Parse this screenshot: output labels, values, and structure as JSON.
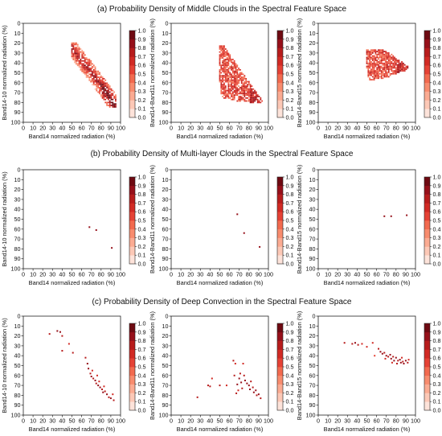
{
  "figure": {
    "ticks": [
      0,
      10,
      20,
      30,
      40,
      50,
      60,
      70,
      80,
      90,
      100
    ],
    "colorbar_ticks": [
      "0.0",
      "0.1",
      "0.2",
      "0.3",
      "0.4",
      "0.5",
      "0.6",
      "0.7",
      "0.8",
      "0.9",
      "1.0"
    ],
    "colorbar_colors": [
      "#ffffff",
      "#fde3da",
      "#fcc8b6",
      "#fbab92",
      "#f88c6e",
      "#f26a4f",
      "#e54235",
      "#d12a24",
      "#b71c1c",
      "#96101a",
      "#6e0a12"
    ],
    "sections": [
      {
        "title": "(a)  Probability Density of Middle Clouds in the Spectral Feature Space",
        "panels": [
          {
            "xlabel": "Band14 normalized radiation (%)",
            "ylabel": "Band14-10 normalized radiation (%)"
          },
          {
            "xlabel": "Band14 normalized radiation (%)",
            "ylabel": "Band14-Band11 normalized radiation (%)"
          },
          {
            "xlabel": "Band14 normalized radiation (%)",
            "ylabel": "Band14-Band15 normalized radiation (%)"
          }
        ]
      },
      {
        "title": "(b)  Probability Density of Multi-layer Clouds in the Spectral Feature Space",
        "panels": [
          {
            "xlabel": "Band14 normalized radiation (%)",
            "ylabel": "Band14-10 normalized radiation (%)"
          },
          {
            "xlabel": "Band14 normalized radiation (%)",
            "ylabel": "Band14-Band11 normalized radiation (%)"
          },
          {
            "xlabel": "Band14 normalized radiation (%)",
            "ylabel": "Band14-Band15 normalized radiation (%)"
          }
        ]
      },
      {
        "title": "(c)  Probability Density of Deep Convection in the Spectral Feature Space",
        "panels": [
          {
            "xlabel": "Band14 normalized radiation (%)",
            "ylabel": "Band14-10 normalized radiation (%)"
          },
          {
            "xlabel": "Band14 normalized radiation (%)",
            "ylabel": "Band14-Band11 normalized radiation (%)"
          },
          {
            "xlabel": "Band14 normalized radiation (%)",
            "ylabel": "Band14-Band15 normalized radiation (%)"
          }
        ]
      }
    ]
  },
  "chart_data": [
    {
      "type": "heatmap",
      "title": "(a)  Probability Density of Middle Clouds in the Spectral Feature Space",
      "xlabel": "Band14 normalized radiation (%)",
      "ylabel": "Band14-10 normalized radiation (%)",
      "xlim": [
        0,
        100
      ],
      "ylim": [
        0,
        100
      ],
      "y_inverted": true,
      "colorbar_range": [
        0.0,
        1.0
      ],
      "density_region": {
        "shape": "diagonal-band",
        "x_range": [
          50,
          95
        ],
        "y_range": [
          20,
          85
        ],
        "centerline": [
          [
            50,
            25
          ],
          [
            60,
            37
          ],
          [
            70,
            50
          ],
          [
            80,
            63
          ],
          [
            90,
            76
          ],
          [
            94,
            83
          ]
        ],
        "half_width": 7
      }
    },
    {
      "type": "heatmap",
      "title": "(a)  Probability Density of Middle Clouds in the Spectral Feature Space",
      "xlabel": "Band14 normalized radiation (%)",
      "ylabel": "Band14-Band11 normalized radiation (%)",
      "xlim": [
        0,
        100
      ],
      "ylim": [
        0,
        100
      ],
      "y_inverted": true,
      "colorbar_range": [
        0.0,
        1.0
      ],
      "density_region": {
        "shape": "polygon",
        "x_range": [
          50,
          95
        ],
        "y_range": [
          20,
          85
        ],
        "polygon": [
          [
            50,
            22
          ],
          [
            54,
            22
          ],
          [
            72,
            48
          ],
          [
            94,
            78
          ],
          [
            92,
            81
          ],
          [
            70,
            79
          ],
          [
            52,
            75
          ],
          [
            50,
            60
          ]
        ]
      }
    },
    {
      "type": "heatmap",
      "title": "(a)  Probability Density of Middle Clouds in the Spectral Feature Space",
      "xlabel": "Band14 normalized radiation (%)",
      "ylabel": "Band14-Band15 normalized radiation (%)",
      "xlim": [
        0,
        100
      ],
      "ylim": [
        0,
        100
      ],
      "y_inverted": true,
      "colorbar_range": [
        0.0,
        1.0
      ],
      "density_region": {
        "shape": "wedge",
        "x_range": [
          50,
          94
        ],
        "y_range": [
          24,
          58
        ],
        "polygon": [
          [
            50,
            26
          ],
          [
            68,
            26
          ],
          [
            93,
            44
          ],
          [
            93,
            47
          ],
          [
            70,
            55
          ],
          [
            52,
            58
          ],
          [
            50,
            45
          ]
        ]
      }
    },
    {
      "type": "scatter",
      "title": "(b)  Probability Density of Multi-layer Clouds in the Spectral Feature Space",
      "xlabel": "Band14 normalized radiation (%)",
      "ylabel": "Band14-10 normalized radiation (%)",
      "xlim": [
        0,
        100
      ],
      "ylim": [
        0,
        100
      ],
      "y_inverted": true,
      "colorbar_range": [
        0.0,
        1.0
      ],
      "points": [
        [
          68,
          58,
          0.9
        ],
        [
          75,
          61,
          0.9
        ],
        [
          91,
          79,
          0.9
        ]
      ]
    },
    {
      "type": "scatter",
      "title": "(b)  Probability Density of Multi-layer Clouds in the Spectral Feature Space",
      "xlabel": "Band14 normalized radiation (%)",
      "ylabel": "Band14-Band11 normalized radiation (%)",
      "xlim": [
        0,
        100
      ],
      "ylim": [
        0,
        100
      ],
      "y_inverted": true,
      "colorbar_range": [
        0.0,
        1.0
      ],
      "points": [
        [
          68,
          45,
          0.9
        ],
        [
          75,
          64,
          0.9
        ],
        [
          91,
          78,
          0.9
        ]
      ]
    },
    {
      "type": "scatter",
      "title": "(b)  Probability Density of Multi-layer Clouds in the Spectral Feature Space",
      "xlabel": "Band14 normalized radiation (%)",
      "ylabel": "Band14-Band15 normalized radiation (%)",
      "xlim": [
        0,
        100
      ],
      "ylim": [
        0,
        100
      ],
      "y_inverted": true,
      "colorbar_range": [
        0.0,
        1.0
      ],
      "points": [
        [
          68,
          47,
          0.9
        ],
        [
          75,
          47,
          0.9
        ],
        [
          91,
          46,
          0.9
        ]
      ]
    },
    {
      "type": "scatter",
      "title": "(c)  Probability Density of Deep Convection in the Spectral Feature Space",
      "xlabel": "Band14 normalized radiation (%)",
      "ylabel": "Band14-10 normalized radiation (%)",
      "xlim": [
        0,
        100
      ],
      "ylim": [
        0,
        100
      ],
      "y_inverted": true,
      "colorbar_range": [
        0.0,
        1.0
      ],
      "points": [
        [
          27,
          18,
          0.8
        ],
        [
          35,
          15,
          0.9
        ],
        [
          38,
          16,
          0.9
        ],
        [
          40,
          20,
          0.8
        ],
        [
          40,
          35,
          0.8
        ],
        [
          47,
          28,
          0.7
        ],
        [
          51,
          37,
          0.8
        ],
        [
          64,
          42,
          0.8
        ],
        [
          66,
          48,
          0.9
        ],
        [
          67,
          53,
          0.9
        ],
        [
          69,
          58,
          0.8
        ],
        [
          70,
          61,
          0.9
        ],
        [
          72,
          63,
          0.8
        ],
        [
          74,
          65,
          0.9
        ],
        [
          75,
          68,
          0.8
        ],
        [
          77,
          70,
          0.9
        ],
        [
          78,
          66,
          0.7
        ],
        [
          79,
          72,
          0.9
        ],
        [
          81,
          74,
          0.8
        ],
        [
          82,
          77,
          0.9
        ],
        [
          84,
          76,
          0.8
        ],
        [
          86,
          79,
          0.9
        ],
        [
          88,
          82,
          0.8
        ],
        [
          90,
          83,
          0.9
        ],
        [
          92,
          79,
          0.7
        ],
        [
          93,
          85,
          0.8
        ],
        [
          76,
          60,
          0.7
        ],
        [
          83,
          71,
          0.7
        ],
        [
          71,
          55,
          0.7
        ]
      ]
    },
    {
      "type": "scatter",
      "title": "(c)  Probability Density of Deep Convection in the Spectral Feature Space",
      "xlabel": "Band14 normalized radiation (%)",
      "ylabel": "Band14-Band11 normalized radiation (%)",
      "xlim": [
        0,
        100
      ],
      "ylim": [
        0,
        100
      ],
      "y_inverted": true,
      "colorbar_range": [
        0.0,
        1.0
      ],
      "points": [
        [
          27,
          82,
          0.8
        ],
        [
          38,
          70,
          0.8
        ],
        [
          40,
          71,
          0.8
        ],
        [
          42,
          63,
          0.7
        ],
        [
          50,
          70,
          0.8
        ],
        [
          57,
          70,
          0.7
        ],
        [
          65,
          60,
          0.8
        ],
        [
          66,
          48,
          0.7
        ],
        [
          67,
          78,
          0.8
        ],
        [
          68,
          69,
          0.9
        ],
        [
          70,
          63,
          0.9
        ],
        [
          71,
          58,
          0.8
        ],
        [
          72,
          67,
          0.9
        ],
        [
          74,
          48,
          0.7
        ],
        [
          75,
          60,
          0.8
        ],
        [
          76,
          65,
          0.9
        ],
        [
          78,
          68,
          0.9
        ],
        [
          80,
          70,
          0.9
        ],
        [
          81,
          74,
          0.9
        ],
        [
          82,
          66,
          0.8
        ],
        [
          84,
          72,
          0.8
        ],
        [
          85,
          77,
          0.9
        ],
        [
          87,
          75,
          0.9
        ],
        [
          88,
          80,
          0.8
        ],
        [
          90,
          79,
          0.9
        ],
        [
          92,
          83,
          0.8
        ],
        [
          73,
          73,
          0.8
        ],
        [
          69,
          75,
          0.7
        ],
        [
          64,
          45,
          0.8
        ]
      ]
    },
    {
      "type": "scatter",
      "title": "(c)  Probability Density of Deep Convection in the Spectral Feature Space",
      "xlabel": "Band14 normalized radiation (%)",
      "ylabel": "Band14-Band15 normalized radiation (%)",
      "xlim": [
        0,
        100
      ],
      "ylim": [
        0,
        100
      ],
      "y_inverted": true,
      "colorbar_range": [
        0.0,
        1.0
      ],
      "points": [
        [
          27,
          27,
          0.8
        ],
        [
          35,
          28,
          0.8
        ],
        [
          38,
          27,
          0.9
        ],
        [
          41,
          29,
          0.8
        ],
        [
          45,
          28,
          0.7
        ],
        [
          50,
          31,
          0.7
        ],
        [
          56,
          27,
          0.7
        ],
        [
          62,
          33,
          0.8
        ],
        [
          64,
          36,
          0.9
        ],
        [
          66,
          38,
          0.9
        ],
        [
          68,
          37,
          0.8
        ],
        [
          70,
          40,
          0.9
        ],
        [
          72,
          41,
          0.8
        ],
        [
          74,
          39,
          0.9
        ],
        [
          75,
          43,
          0.9
        ],
        [
          77,
          41,
          0.8
        ],
        [
          78,
          45,
          0.9
        ],
        [
          80,
          42,
          0.9
        ],
        [
          82,
          45,
          0.8
        ],
        [
          84,
          44,
          0.9
        ],
        [
          85,
          47,
          0.9
        ],
        [
          87,
          46,
          0.8
        ],
        [
          88,
          48,
          0.9
        ],
        [
          90,
          45,
          0.9
        ],
        [
          92,
          47,
          0.8
        ],
        [
          93,
          44,
          0.7
        ],
        [
          76,
          47,
          0.7
        ],
        [
          69,
          43,
          0.7
        ],
        [
          81,
          48,
          0.8
        ],
        [
          86,
          42,
          0.7
        ],
        [
          58,
          40,
          0.6
        ]
      ]
    }
  ]
}
